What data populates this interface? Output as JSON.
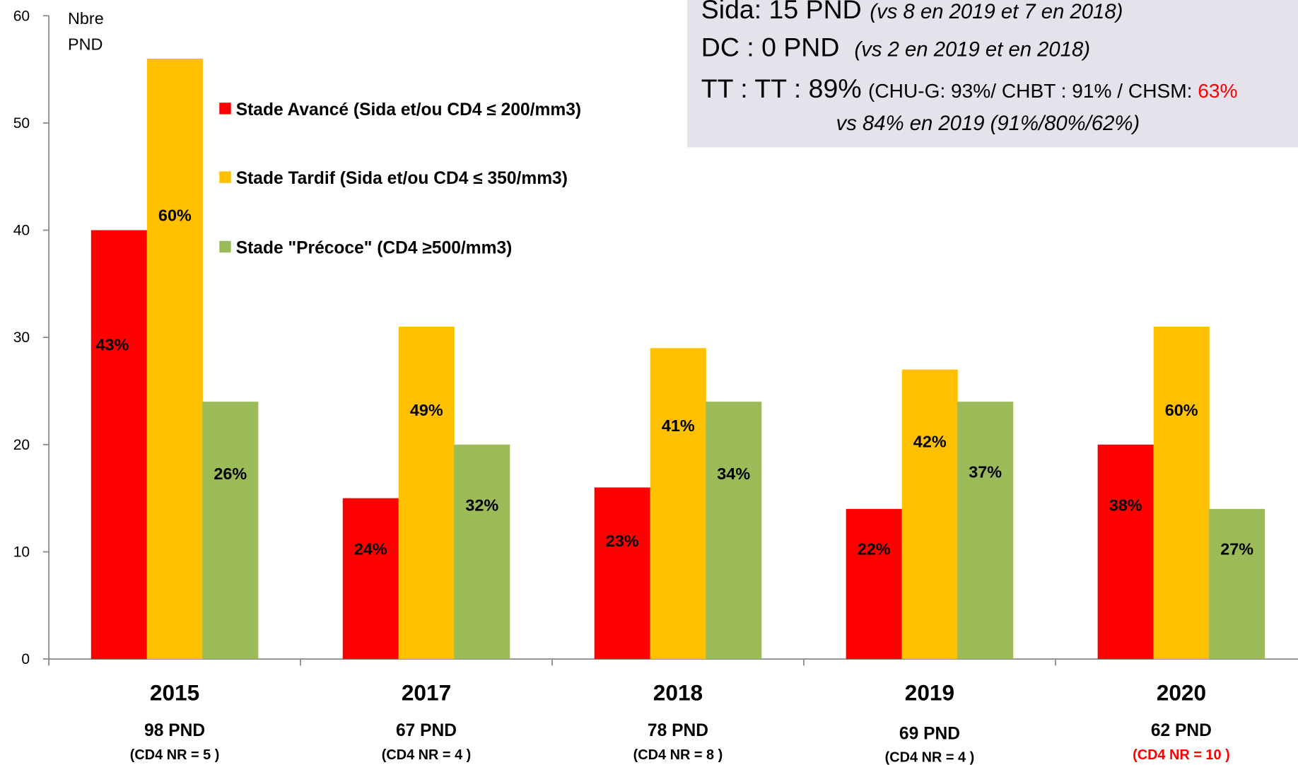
{
  "chart_data": {
    "type": "bar",
    "y_label": [
      "Nbre",
      "PND"
    ],
    "categories": [
      "2015",
      "2017",
      "2018",
      "2019",
      "2020"
    ],
    "category_notes": [
      {
        "total": "98 PND",
        "cd4": "(CD4 NR = 5 )",
        "color": "#000000"
      },
      {
        "total": "67 PND",
        "cd4": "(CD4 NR = 4 )",
        "color": "#000000"
      },
      {
        "total": "78 PND",
        "cd4": "(CD4 NR = 8 )",
        "color": "#000000"
      },
      {
        "total": "69 PND",
        "cd4": "(CD4 NR = 4 )",
        "color": "#000000"
      },
      {
        "total": "62 PND",
        "cd4": "(CD4 NR = 10 )",
        "color": "#ff0000"
      }
    ],
    "series": [
      {
        "name": "Stade Avancé (Sida et/ou CD4 ≤ 200/mm3)",
        "color": "#ff0000",
        "values": [
          40,
          15,
          16,
          14,
          20
        ],
        "annotations": [
          "43%",
          "24%",
          "23%",
          "22%",
          "38%"
        ]
      },
      {
        "name": "Stade Tardif (Sida et/ou CD4 ≤ 350/mm3)",
        "color": "#ffc000",
        "values": [
          56,
          31,
          29,
          27,
          31
        ],
        "annotations": [
          "60%",
          "49%",
          "41%",
          "42%",
          "60%"
        ]
      },
      {
        "name": "Stade \"Précoce\" (CD4 ≥500/mm3)",
        "color": "#9bbb59",
        "values": [
          24,
          20,
          24,
          24,
          14
        ],
        "annotations": [
          "26%",
          "32%",
          "34%",
          "37%",
          "27%"
        ]
      }
    ],
    "ylim": [
      0,
      60
    ],
    "yticks": [
      0,
      10,
      20,
      30,
      40,
      50,
      60
    ],
    "grid": false,
    "info_box": {
      "sida": "Sida: 15 PND",
      "sida_note": "(vs 8 en 2019 et  7 en 2018)",
      "dc": "DC : 0 PND",
      "dc_note": "(vs 2 en  2019 et en 2018)",
      "tt": "TT : TT : 89%",
      "tt_note": "(CHU-G: 93%/ CHBT : 91% / CHSM: ",
      "tt_red": "63%",
      "tt_vs": "vs 84%  en 2019 (91%/80%/62%)"
    }
  }
}
